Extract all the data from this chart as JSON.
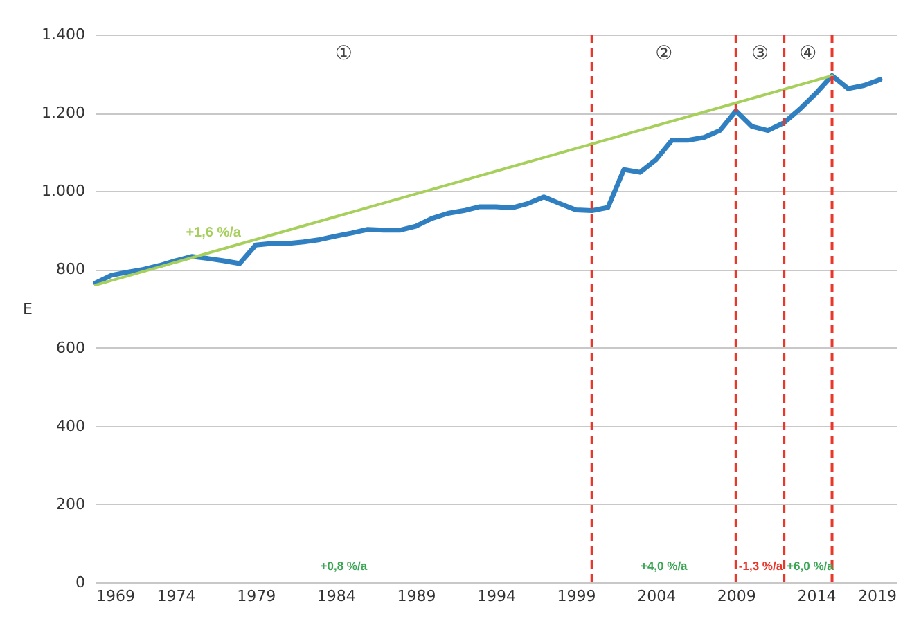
{
  "chart_data": {
    "type": "line",
    "ylabel": "E",
    "xlim": [
      1969,
      2019
    ],
    "xticks": [
      1969,
      1974,
      1979,
      1984,
      1989,
      1994,
      1999,
      2004,
      2009,
      2014,
      2019
    ],
    "ylim": [
      0,
      1400
    ],
    "yticks": [
      0,
      200,
      400,
      600,
      800,
      {
        "value": 1000,
        "label": "1.000"
      },
      {
        "value": 1200,
        "label": "1.200"
      },
      {
        "value": 1400,
        "label": "1.400"
      }
    ],
    "grid": "y",
    "line_style": "solid",
    "marker": "none",
    "series": [
      {
        "color": "#2f7fc1",
        "x": [
          1969,
          1970,
          1971,
          1972,
          1973,
          1974,
          1975,
          1976,
          1977,
          1978,
          1979,
          1980,
          1981,
          1982,
          1983,
          1984,
          1985,
          1986,
          1987,
          1988,
          1989,
          1990,
          1991,
          1992,
          1993,
          1994,
          1995,
          1996,
          1997,
          1998,
          1999,
          2000,
          2001,
          2002,
          2003,
          2004,
          2005,
          2006,
          2007,
          2008,
          2009,
          2010,
          2011,
          2012,
          2013,
          2014,
          2015,
          2016,
          2017,
          2018
        ],
        "values": [
          765,
          785,
          793,
          800,
          810,
          822,
          833,
          828,
          822,
          815,
          862,
          866,
          866,
          870,
          876,
          885,
          893,
          902,
          900,
          900,
          910,
          930,
          943,
          950,
          960,
          960,
          957,
          968,
          985,
          968,
          952,
          950,
          958,
          1055,
          1048,
          1080,
          1130,
          1130,
          1137,
          1155,
          1205,
          1165,
          1155,
          1175,
          1210,
          1250,
          1295,
          1262,
          1270,
          1285
        ]
      },
      {
        "color": "#a6cf5c",
        "x": [
          1969,
          2015
        ],
        "values": [
          760,
          1295
        ]
      }
    ],
    "ref_lines": [
      {
        "axis": "x",
        "value": 2000,
        "color": "#e8382b",
        "line_style": "dashed"
      },
      {
        "axis": "x",
        "value": 2009,
        "color": "#e8382b",
        "line_style": "dashed"
      },
      {
        "axis": "x",
        "value": 2012,
        "color": "#e8382b",
        "line_style": "dashed"
      },
      {
        "axis": "x",
        "value": 2015,
        "color": "#e8382b",
        "line_style": "dashed"
      }
    ],
    "annotations": [
      "①",
      "②",
      "③",
      "④",
      "+1,6 %/a",
      "+0,8 %/a",
      "+4,0 %/a",
      "-1,3 %/a",
      "+6,0 %/a"
    ]
  }
}
